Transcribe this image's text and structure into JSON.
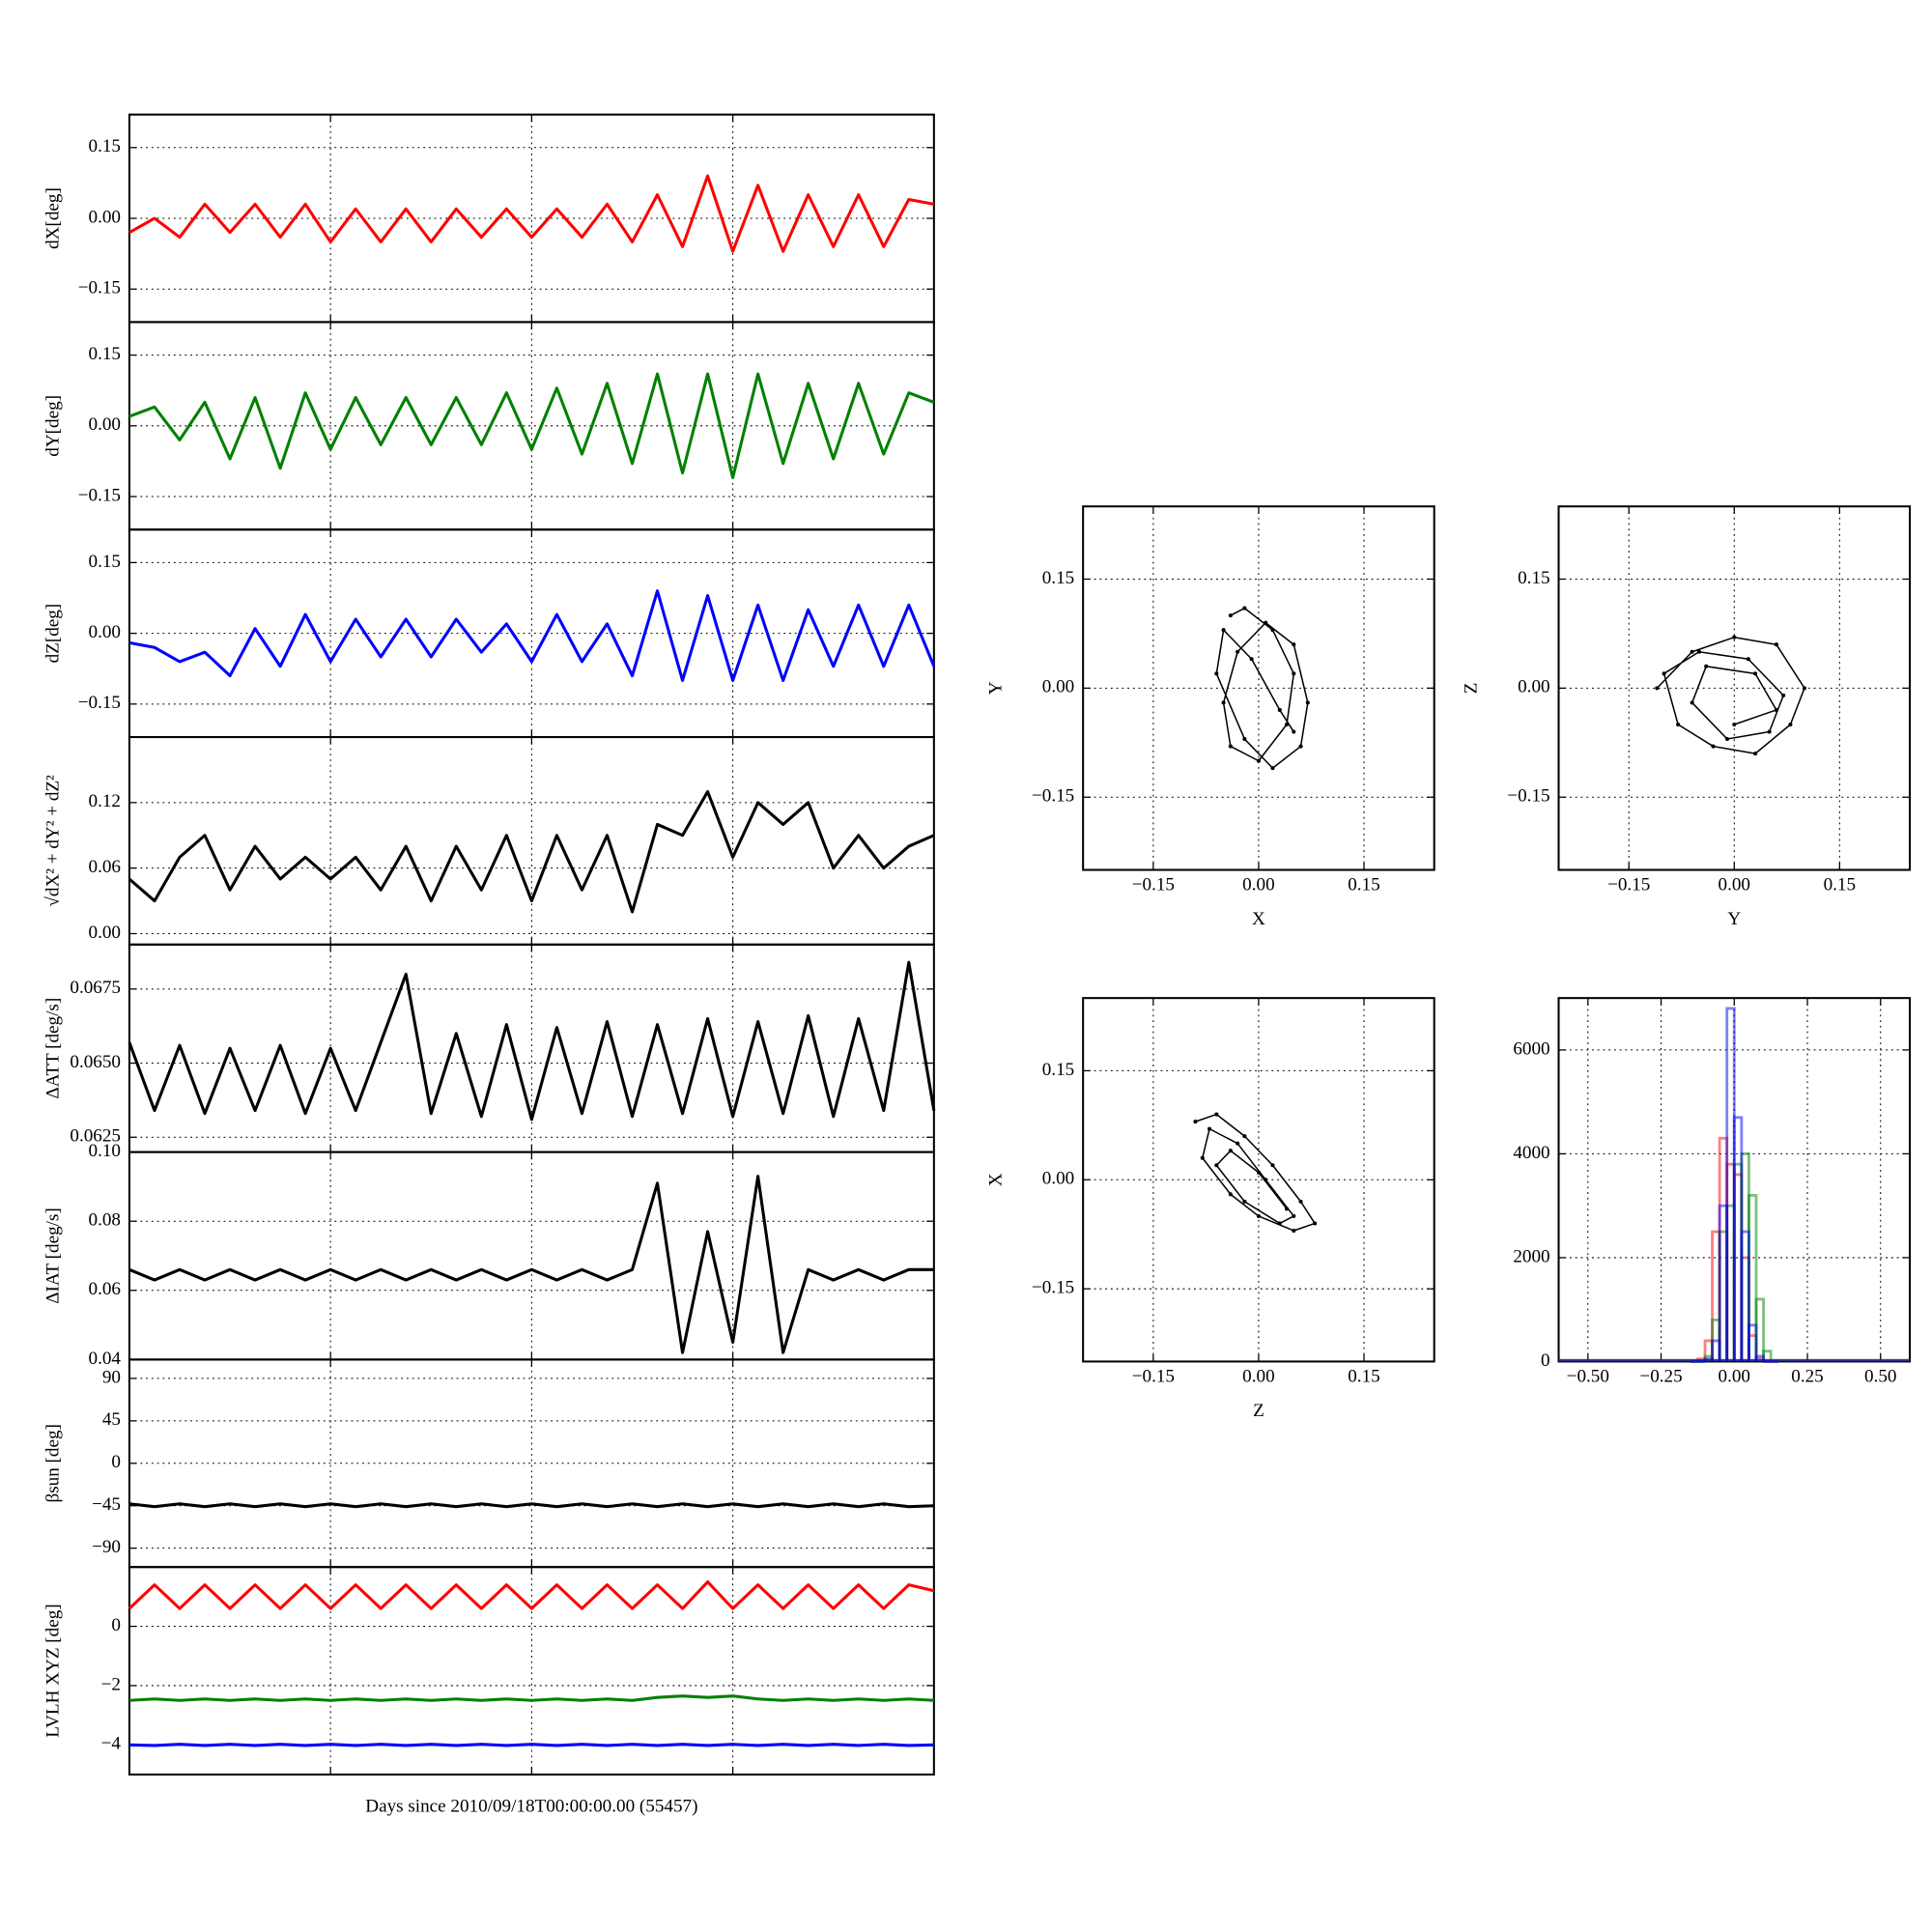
{
  "chart_data": [
    {
      "type": "line",
      "xlabel": "Days since 2010/09/18T00:00:00.00 (55457)",
      "x": [
        0,
        0.625,
        1.25,
        1.875,
        2.5,
        3.125,
        3.75,
        4.375,
        5,
        5.625,
        6.25,
        6.875,
        7.5,
        8.125,
        8.75,
        9.375,
        10,
        10.625,
        11.25,
        11.875,
        12.5,
        13.125,
        13.75,
        14.375,
        15,
        15.625,
        16.25,
        16.875,
        17.5,
        18.125,
        18.75,
        19.375,
        20
      ],
      "xlim": [
        0,
        20
      ],
      "xticks": [
        0,
        5,
        10,
        15,
        20
      ],
      "grid": true,
      "panels": [
        {
          "ylabel": "dX[deg]",
          "ylim": [
            -0.22,
            0.22
          ],
          "yticks": [
            {
              "value": -0.15,
              "label": "−0.15"
            },
            {
              "value": 0,
              "label": "0.00"
            },
            0.15
          ],
          "series": [
            {
              "color": "#ff0000",
              "values": [
                -0.03,
                0.0,
                -0.04,
                0.03,
                -0.03,
                0.03,
                -0.04,
                0.03,
                -0.05,
                0.02,
                -0.05,
                0.02,
                -0.05,
                0.02,
                -0.04,
                0.02,
                -0.04,
                0.02,
                -0.04,
                0.03,
                -0.05,
                0.05,
                -0.06,
                0.09,
                -0.07,
                0.07,
                -0.07,
                0.05,
                -0.06,
                0.05,
                -0.06,
                0.04,
                0.03
              ]
            }
          ]
        },
        {
          "ylabel": "dY[deg]",
          "ylim": [
            -0.22,
            0.22
          ],
          "yticks": [
            {
              "value": -0.15,
              "label": "−0.15"
            },
            {
              "value": 0,
              "label": "0.00"
            },
            0.15
          ],
          "series": [
            {
              "color": "#008000",
              "values": [
                0.02,
                0.04,
                -0.03,
                0.05,
                -0.07,
                0.06,
                -0.09,
                0.07,
                -0.05,
                0.06,
                -0.04,
                0.06,
                -0.04,
                0.06,
                -0.04,
                0.07,
                -0.05,
                0.08,
                -0.06,
                0.09,
                -0.08,
                0.11,
                -0.1,
                0.11,
                -0.11,
                0.11,
                -0.08,
                0.09,
                -0.07,
                0.09,
                -0.06,
                0.07,
                0.05
              ]
            }
          ]
        },
        {
          "ylabel": "dZ[deg]",
          "ylim": [
            -0.22,
            0.22
          ],
          "yticks": [
            {
              "value": -0.15,
              "label": "−0.15"
            },
            {
              "value": 0,
              "label": "0.00"
            },
            0.15
          ],
          "series": [
            {
              "color": "#0000ff",
              "values": [
                -0.02,
                -0.03,
                -0.06,
                -0.04,
                -0.09,
                0.01,
                -0.07,
                0.04,
                -0.06,
                0.03,
                -0.05,
                0.03,
                -0.05,
                0.03,
                -0.04,
                0.02,
                -0.06,
                0.04,
                -0.06,
                0.02,
                -0.09,
                0.09,
                -0.1,
                0.08,
                -0.1,
                0.06,
                -0.1,
                0.05,
                -0.07,
                0.06,
                -0.07,
                0.06,
                -0.07
              ]
            }
          ]
        },
        {
          "ylabel": "√dX² + dY² + dZ²",
          "ylim": [
            -0.01,
            0.18
          ],
          "yticks": [
            {
              "value": 0,
              "label": "0.00"
            },
            0.06,
            0.12
          ],
          "series": [
            {
              "color": "#000000",
              "values": [
                0.05,
                0.03,
                0.07,
                0.09,
                0.04,
                0.08,
                0.05,
                0.07,
                0.05,
                0.07,
                0.04,
                0.08,
                0.03,
                0.08,
                0.04,
                0.09,
                0.03,
                0.09,
                0.04,
                0.09,
                0.02,
                0.1,
                0.09,
                0.13,
                0.07,
                0.12,
                0.1,
                0.12,
                0.06,
                0.09,
                0.06,
                0.08,
                0.09
              ]
            }
          ]
        },
        {
          "ylabel": "ΔATT [deg/s]",
          "ylim": [
            0.062,
            0.069
          ],
          "yticks": [
            0.0625,
            {
              "value": 0.065,
              "label": "0.0650"
            },
            0.0675
          ],
          "series": [
            {
              "color": "#000000",
              "values": [
                0.0657,
                0.0634,
                0.0656,
                0.0633,
                0.0655,
                0.0634,
                0.0656,
                0.0633,
                0.0655,
                0.0634,
                0.0657,
                0.068,
                0.0633,
                0.066,
                0.0632,
                0.0663,
                0.0631,
                0.0662,
                0.0633,
                0.0664,
                0.0632,
                0.0663,
                0.0633,
                0.0665,
                0.0632,
                0.0664,
                0.0633,
                0.0666,
                0.0632,
                0.0665,
                0.0634,
                0.0684,
                0.0634
              ]
            }
          ]
        },
        {
          "ylabel": "ΔIAT [deg/s]",
          "ylim": [
            0.04,
            0.1
          ],
          "yticks": [
            0.04,
            0.06,
            0.08,
            {
              "value": 0.1,
              "label": "0.10"
            }
          ],
          "series": [
            {
              "color": "#000000",
              "values": [
                0.066,
                0.063,
                0.066,
                0.063,
                0.066,
                0.063,
                0.066,
                0.063,
                0.066,
                0.063,
                0.066,
                0.063,
                0.066,
                0.063,
                0.066,
                0.063,
                0.066,
                0.063,
                0.066,
                0.063,
                0.066,
                0.091,
                0.042,
                0.077,
                0.045,
                0.093,
                0.042,
                0.066,
                0.063,
                0.066,
                0.063,
                0.066,
                0.066
              ]
            }
          ]
        },
        {
          "ylabel": "βsun [deg]",
          "ylim": [
            -110,
            110
          ],
          "yticks": [
            {
              "value": -90,
              "label": "−90"
            },
            {
              "value": -45,
              "label": "−45"
            },
            0,
            45,
            90
          ],
          "series": [
            {
              "color": "#000000",
              "values": [
                -43,
                -46,
                -43,
                -46,
                -43,
                -46,
                -43,
                -46,
                -43,
                -46,
                -43,
                -46,
                -43,
                -46,
                -43,
                -46,
                -43,
                -46,
                -43,
                -46,
                -43,
                -46,
                -43,
                -46,
                -43,
                -46,
                -43,
                -46,
                -43,
                -46,
                -43,
                -46,
                -45
              ]
            }
          ]
        },
        {
          "ylabel": "LVLH XYZ [deg]",
          "ylim": [
            -5,
            2
          ],
          "yticks": [
            {
              "value": -4,
              "label": "−4"
            },
            {
              "value": -2,
              "label": "−2"
            },
            0
          ],
          "series": [
            {
              "color": "#ff0000",
              "values": [
                0.6,
                1.4,
                0.6,
                1.4,
                0.6,
                1.4,
                0.6,
                1.4,
                0.6,
                1.4,
                0.6,
                1.4,
                0.6,
                1.4,
                0.6,
                1.4,
                0.6,
                1.4,
                0.6,
                1.4,
                0.6,
                1.4,
                0.6,
                1.5,
                0.6,
                1.4,
                0.6,
                1.4,
                0.6,
                1.4,
                0.6,
                1.4,
                1.2
              ]
            },
            {
              "color": "#008000",
              "values": [
                -2.5,
                -2.45,
                -2.5,
                -2.45,
                -2.5,
                -2.45,
                -2.5,
                -2.45,
                -2.5,
                -2.45,
                -2.5,
                -2.45,
                -2.5,
                -2.45,
                -2.5,
                -2.45,
                -2.5,
                -2.45,
                -2.5,
                -2.45,
                -2.5,
                -2.4,
                -2.35,
                -2.4,
                -2.35,
                -2.45,
                -2.5,
                -2.45,
                -2.5,
                -2.45,
                -2.5,
                -2.45,
                -2.5
              ]
            },
            {
              "color": "#0000ff",
              "values": [
                -4.0,
                -4.02,
                -3.98,
                -4.02,
                -3.98,
                -4.02,
                -3.98,
                -4.02,
                -3.98,
                -4.02,
                -3.98,
                -4.02,
                -3.98,
                -4.02,
                -3.98,
                -4.02,
                -3.98,
                -4.02,
                -3.98,
                -4.02,
                -3.98,
                -4.02,
                -3.98,
                -4.02,
                -3.98,
                -4.02,
                -3.98,
                -4.02,
                -3.98,
                -4.02,
                -3.98,
                -4.02,
                -4.0
              ]
            }
          ]
        }
      ]
    },
    {
      "type": "scatter",
      "xlabel": "X",
      "ylabel": "Y",
      "color": "#000000",
      "grid": true,
      "xlim": [
        -0.25,
        0.25
      ],
      "ylim": [
        -0.25,
        0.25
      ],
      "xticks": [
        {
          "value": -0.15,
          "label": "−0.15"
        },
        {
          "value": 0,
          "label": "0.00"
        },
        0.15
      ],
      "yticks": [
        {
          "value": -0.15,
          "label": "−0.15"
        },
        {
          "value": 0,
          "label": "0.00"
        },
        0.15
      ],
      "x": [
        -0.04,
        -0.02,
        0.02,
        0.05,
        0.04,
        0.0,
        -0.04,
        -0.05,
        -0.03,
        0.01,
        0.05,
        0.07,
        0.06,
        0.02,
        -0.02,
        -0.06,
        -0.05,
        -0.01,
        0.03,
        0.05
      ],
      "y": [
        0.1,
        0.11,
        0.08,
        0.02,
        -0.05,
        -0.1,
        -0.08,
        -0.02,
        0.05,
        0.09,
        0.06,
        -0.02,
        -0.08,
        -0.11,
        -0.07,
        0.02,
        0.08,
        0.04,
        -0.03,
        -0.06
      ]
    },
    {
      "type": "scatter",
      "xlabel": "Y",
      "ylabel": "Z",
      "color": "#000000",
      "grid": true,
      "xlim": [
        -0.25,
        0.25
      ],
      "ylim": [
        -0.25,
        0.25
      ],
      "xticks": [
        {
          "value": -0.15,
          "label": "−0.15"
        },
        {
          "value": 0,
          "label": "0.00"
        },
        0.15
      ],
      "yticks": [
        {
          "value": -0.15,
          "label": "−0.15"
        },
        {
          "value": 0,
          "label": "0.00"
        },
        0.15
      ],
      "x": [
        -0.11,
        -0.06,
        0.0,
        0.06,
        0.1,
        0.08,
        0.03,
        -0.03,
        -0.08,
        -0.1,
        -0.05,
        0.02,
        0.07,
        0.05,
        -0.01,
        -0.06,
        -0.04,
        0.03,
        0.06,
        0.0
      ],
      "y": [
        0.0,
        0.05,
        0.07,
        0.06,
        0.0,
        -0.05,
        -0.09,
        -0.08,
        -0.05,
        0.02,
        0.05,
        0.04,
        -0.01,
        -0.06,
        -0.07,
        -0.02,
        0.03,
        0.02,
        -0.03,
        -0.05
      ]
    },
    {
      "type": "scatter",
      "xlabel": "Z",
      "ylabel": "X",
      "color": "#000000",
      "grid": true,
      "xlim": [
        -0.25,
        0.25
      ],
      "ylim": [
        -0.25,
        0.25
      ],
      "xticks": [
        {
          "value": -0.15,
          "label": "−0.15"
        },
        {
          "value": 0,
          "label": "0.00"
        },
        0.15
      ],
      "yticks": [
        {
          "value": -0.15,
          "label": "−0.15"
        },
        {
          "value": 0,
          "label": "0.00"
        },
        0.15
      ],
      "x": [
        -0.09,
        -0.06,
        -0.02,
        0.02,
        0.06,
        0.08,
        0.05,
        0.0,
        -0.04,
        -0.08,
        -0.07,
        -0.03,
        0.01,
        0.05,
        0.03,
        -0.02,
        -0.06,
        -0.04,
        0.0,
        0.04
      ],
      "y": [
        0.08,
        0.09,
        0.06,
        0.02,
        -0.03,
        -0.06,
        -0.07,
        -0.05,
        -0.02,
        0.03,
        0.07,
        0.05,
        0.0,
        -0.05,
        -0.06,
        -0.03,
        0.02,
        0.04,
        0.01,
        -0.04
      ]
    },
    {
      "type": "histogram",
      "grid": true,
      "xlim": [
        -0.6,
        0.6
      ],
      "ylim": [
        0,
        7000
      ],
      "xticks": [
        {
          "value": -0.5,
          "label": "−0.50"
        },
        {
          "value": -0.25,
          "label": "−0.25"
        },
        {
          "value": 0,
          "label": "0.00"
        },
        0.25,
        {
          "value": 0.5,
          "label": "0.50"
        }
      ],
      "yticks": [
        0,
        2000,
        4000,
        6000
      ],
      "bins": [
        -0.15,
        -0.125,
        -0.1,
        -0.075,
        -0.05,
        -0.025,
        0,
        0.025,
        0.05,
        0.075,
        0.1,
        0.125,
        0.15
      ],
      "series": [
        {
          "color": "#ff0000",
          "values": [
            0,
            50,
            400,
            2500,
            4300,
            3800,
            3600,
            2000,
            500,
            50,
            0,
            0
          ]
        },
        {
          "color": "#008000",
          "values": [
            0,
            0,
            100,
            800,
            2500,
            3000,
            3800,
            4000,
            3200,
            1200,
            200,
            0
          ]
        },
        {
          "color": "#0000ff",
          "values": [
            0,
            0,
            50,
            400,
            3000,
            6800,
            4700,
            2500,
            700,
            100,
            0,
            0
          ]
        }
      ]
    }
  ]
}
